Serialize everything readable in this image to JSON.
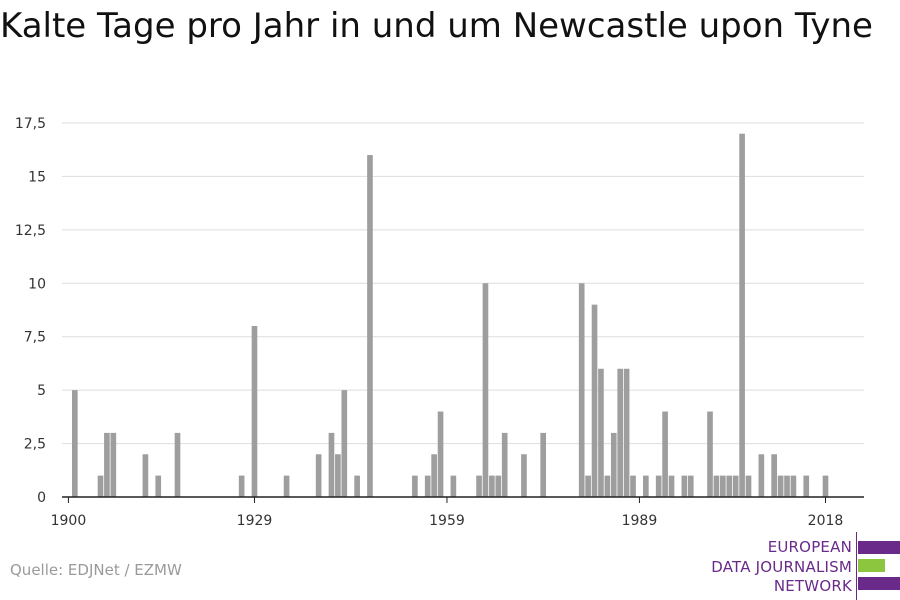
{
  "title": "Kalte Tage pro Jahr in und um Newcastle upon Tyne",
  "source": "Quelle: EDJNet / EZMW",
  "logo": {
    "line1": "EUROPEAN",
    "line2": "DATA JOURNALISM",
    "line3": "NETWORK",
    "colors": {
      "purple": "#6a2a8a",
      "green": "#8cc63f"
    }
  },
  "chart_data": {
    "type": "bar",
    "title": "Kalte Tage pro Jahr in und um Newcastle upon Tyne",
    "xlabel": "",
    "ylabel": "",
    "xlim": [
      1899,
      2024
    ],
    "ylim": [
      0,
      17.5
    ],
    "grid": true,
    "bar_color": "#9e9e9e",
    "y_ticks": [
      0,
      2.5,
      5,
      7.5,
      10,
      12.5,
      15,
      17.5
    ],
    "y_tick_labels": [
      "0",
      "2,5",
      "5",
      "7,5",
      "10",
      "12,5",
      "15",
      "17,5"
    ],
    "x_ticks": [
      1900,
      1929,
      1959,
      1989,
      2018
    ],
    "x_tick_labels": [
      "1900",
      "1929",
      "1959",
      "1989",
      "2018"
    ],
    "x": [
      1901,
      1905,
      1906,
      1907,
      1912,
      1914,
      1917,
      1927,
      1929,
      1934,
      1939,
      1941,
      1942,
      1943,
      1945,
      1947,
      1954,
      1956,
      1957,
      1958,
      1960,
      1964,
      1965,
      1966,
      1967,
      1968,
      1971,
      1974,
      1980,
      1981,
      1982,
      1983,
      1984,
      1985,
      1986,
      1987,
      1988,
      1990,
      1992,
      1993,
      1994,
      1996,
      1997,
      2000,
      2001,
      2002,
      2003,
      2004,
      2005,
      2006,
      2008,
      2010,
      2011,
      2012,
      2013,
      2015,
      2018
    ],
    "values": [
      5,
      1,
      3,
      3,
      2,
      1,
      3,
      1,
      8,
      1,
      2,
      3,
      2,
      5,
      1,
      16,
      1,
      1,
      2,
      4,
      1,
      1,
      10,
      1,
      1,
      3,
      2,
      3,
      10,
      1,
      9,
      6,
      1,
      3,
      6,
      6,
      1,
      1,
      1,
      4,
      1,
      1,
      1,
      4,
      1,
      1,
      1,
      1,
      17,
      1,
      2,
      2,
      1,
      1,
      1,
      1,
      1
    ]
  }
}
